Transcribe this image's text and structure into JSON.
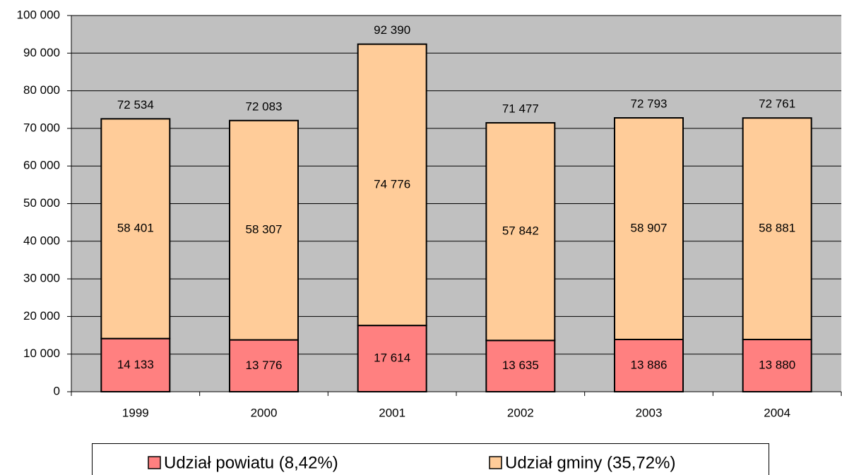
{
  "chart_data": {
    "type": "stacked_bar",
    "categories": [
      "1999",
      "2000",
      "2001",
      "2002",
      "2003",
      "2004"
    ],
    "series": [
      {
        "name": "Udział powiatu (8,42%)",
        "color": "#ff8080",
        "values": [
          14133,
          13776,
          17614,
          13635,
          13886,
          13880
        ],
        "value_labels": [
          "14 133",
          "13 776",
          "17 614",
          "13 635",
          "13 886",
          "13 880"
        ]
      },
      {
        "name": "Udział gminy (35,72%)",
        "color": "#ffcc99",
        "values": [
          58401,
          58307,
          74776,
          57842,
          58907,
          58881
        ],
        "value_labels": [
          "58 401",
          "58 307",
          "74 776",
          "57 842",
          "58 907",
          "58 881"
        ]
      }
    ],
    "totals": [
      72534,
      72083,
      92390,
      71477,
      72793,
      72761
    ],
    "total_labels": [
      "72 534",
      "72 083",
      "92 390",
      "71 477",
      "72 793",
      "72 761"
    ],
    "ylim": [
      0,
      100000
    ],
    "yticks": [
      0,
      {
        "value": 10000,
        "label": "10 000"
      },
      {
        "value": 20000,
        "label": "20 000"
      },
      {
        "value": 30000,
        "label": "30 000"
      },
      {
        "value": 40000,
        "label": "40 000"
      },
      {
        "value": 50000,
        "label": "50 000"
      },
      {
        "value": 60000,
        "label": "60 000"
      },
      {
        "value": 70000,
        "label": "70 000"
      },
      {
        "value": 80000,
        "label": "80 000"
      },
      {
        "value": 90000,
        "label": "90 000"
      },
      {
        "value": 100000,
        "label": "100 000"
      }
    ],
    "grid": true,
    "background": "#c0c0c0",
    "legend": "bottom"
  }
}
